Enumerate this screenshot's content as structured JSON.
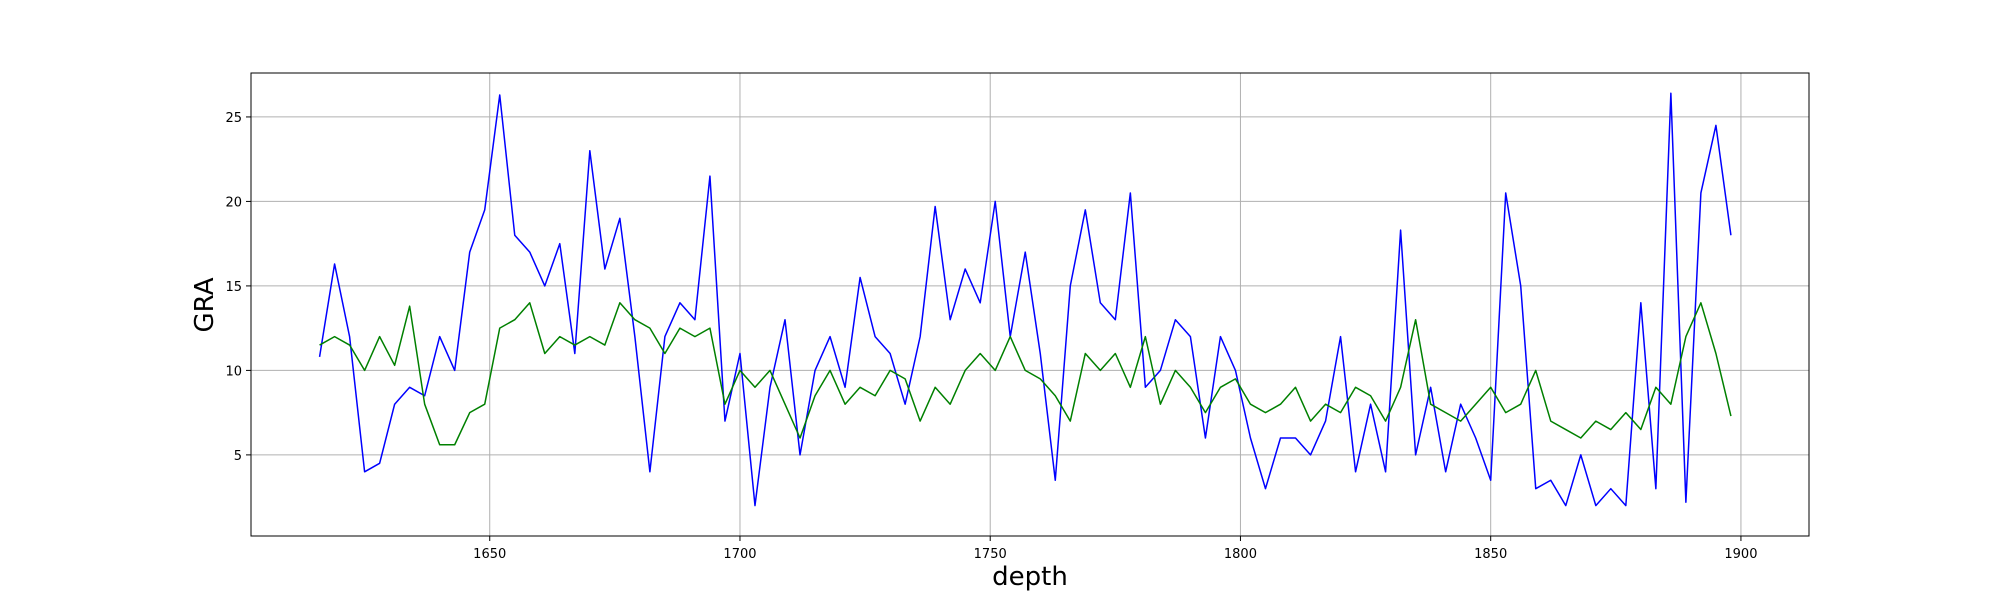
{
  "chart_data": {
    "type": "line",
    "x_label": "depth",
    "y_label": "GRA",
    "x": [
      1616,
      1619,
      1622,
      1625,
      1628,
      1631,
      1634,
      1637,
      1640,
      1643,
      1646,
      1649,
      1652,
      1655,
      1658,
      1661,
      1664,
      1667,
      1670,
      1673,
      1676,
      1679,
      1682,
      1685,
      1688,
      1691,
      1694,
      1697,
      1700,
      1703,
      1706,
      1709,
      1712,
      1715,
      1718,
      1721,
      1724,
      1727,
      1730,
      1733,
      1736,
      1739,
      1742,
      1745,
      1748,
      1751,
      1754,
      1757,
      1760,
      1763,
      1766,
      1769,
      1772,
      1775,
      1778,
      1781,
      1784,
      1787,
      1790,
      1793,
      1796,
      1799,
      1802,
      1805,
      1808,
      1811,
      1814,
      1817,
      1820,
      1823,
      1826,
      1829,
      1832,
      1835,
      1838,
      1841,
      1844,
      1847,
      1850,
      1853,
      1856,
      1859,
      1862,
      1865,
      1868,
      1871,
      1874,
      1877,
      1880,
      1883,
      1886,
      1889,
      1892,
      1895,
      1898
    ],
    "series": [
      {
        "color": "#0000ff",
        "values": [
          10.8,
          16.3,
          12,
          4,
          4.5,
          8,
          9,
          8.5,
          12,
          10,
          17,
          19.5,
          26.3,
          18,
          17,
          15,
          17.5,
          11,
          23,
          16,
          19,
          12,
          4,
          12,
          14,
          13,
          21.5,
          7,
          11,
          2,
          9,
          13,
          5,
          10,
          12,
          9,
          15.5,
          12,
          11,
          8,
          12,
          19.7,
          13,
          16,
          14,
          20,
          12,
          17,
          11,
          3.5,
          15,
          19.5,
          14,
          13,
          20.5,
          9,
          10,
          13,
          12,
          6,
          12,
          10,
          6,
          3,
          6,
          6,
          5,
          7,
          12,
          4,
          8,
          4,
          18.3,
          5,
          9,
          4,
          8,
          6,
          3.5,
          20.5,
          15,
          3,
          3.5,
          2,
          5,
          2,
          3,
          2,
          14,
          3,
          26.4,
          2.2,
          20.5,
          24.5,
          18
        ]
      },
      {
        "color": "#008000",
        "values": [
          11.5,
          12,
          11.5,
          10,
          12,
          10.3,
          13.8,
          8,
          5.6,
          5.6,
          7.5,
          8,
          12.5,
          13,
          14,
          11,
          12,
          11.5,
          12,
          11.5,
          14,
          13,
          12.5,
          11,
          12.5,
          12,
          12.5,
          8,
          10,
          9,
          10,
          8,
          6,
          8.5,
          10,
          8,
          9,
          8.5,
          10,
          9.5,
          7,
          9,
          8,
          10,
          11,
          10,
          12,
          10,
          9.5,
          8.5,
          7,
          11,
          10,
          11,
          9,
          12,
          8,
          10,
          9,
          7.5,
          9,
          9.5,
          8,
          7.5,
          8,
          9,
          7,
          8,
          7.5,
          9,
          8.5,
          7,
          9,
          13,
          8,
          7.5,
          7,
          8,
          9,
          7.5,
          8,
          10,
          7,
          6.5,
          6,
          7,
          6.5,
          7.5,
          6.5,
          9,
          8,
          12,
          14,
          11,
          7.3
        ]
      }
    ],
    "xlim": [
      1602.3,
      1913.6
    ],
    "ylim": [
      0.2,
      27.6
    ],
    "xticks": [
      1650,
      1700,
      1750,
      1800,
      1850,
      1900
    ],
    "yticks": [
      5,
      10,
      15,
      20,
      25
    ],
    "grid": true
  }
}
